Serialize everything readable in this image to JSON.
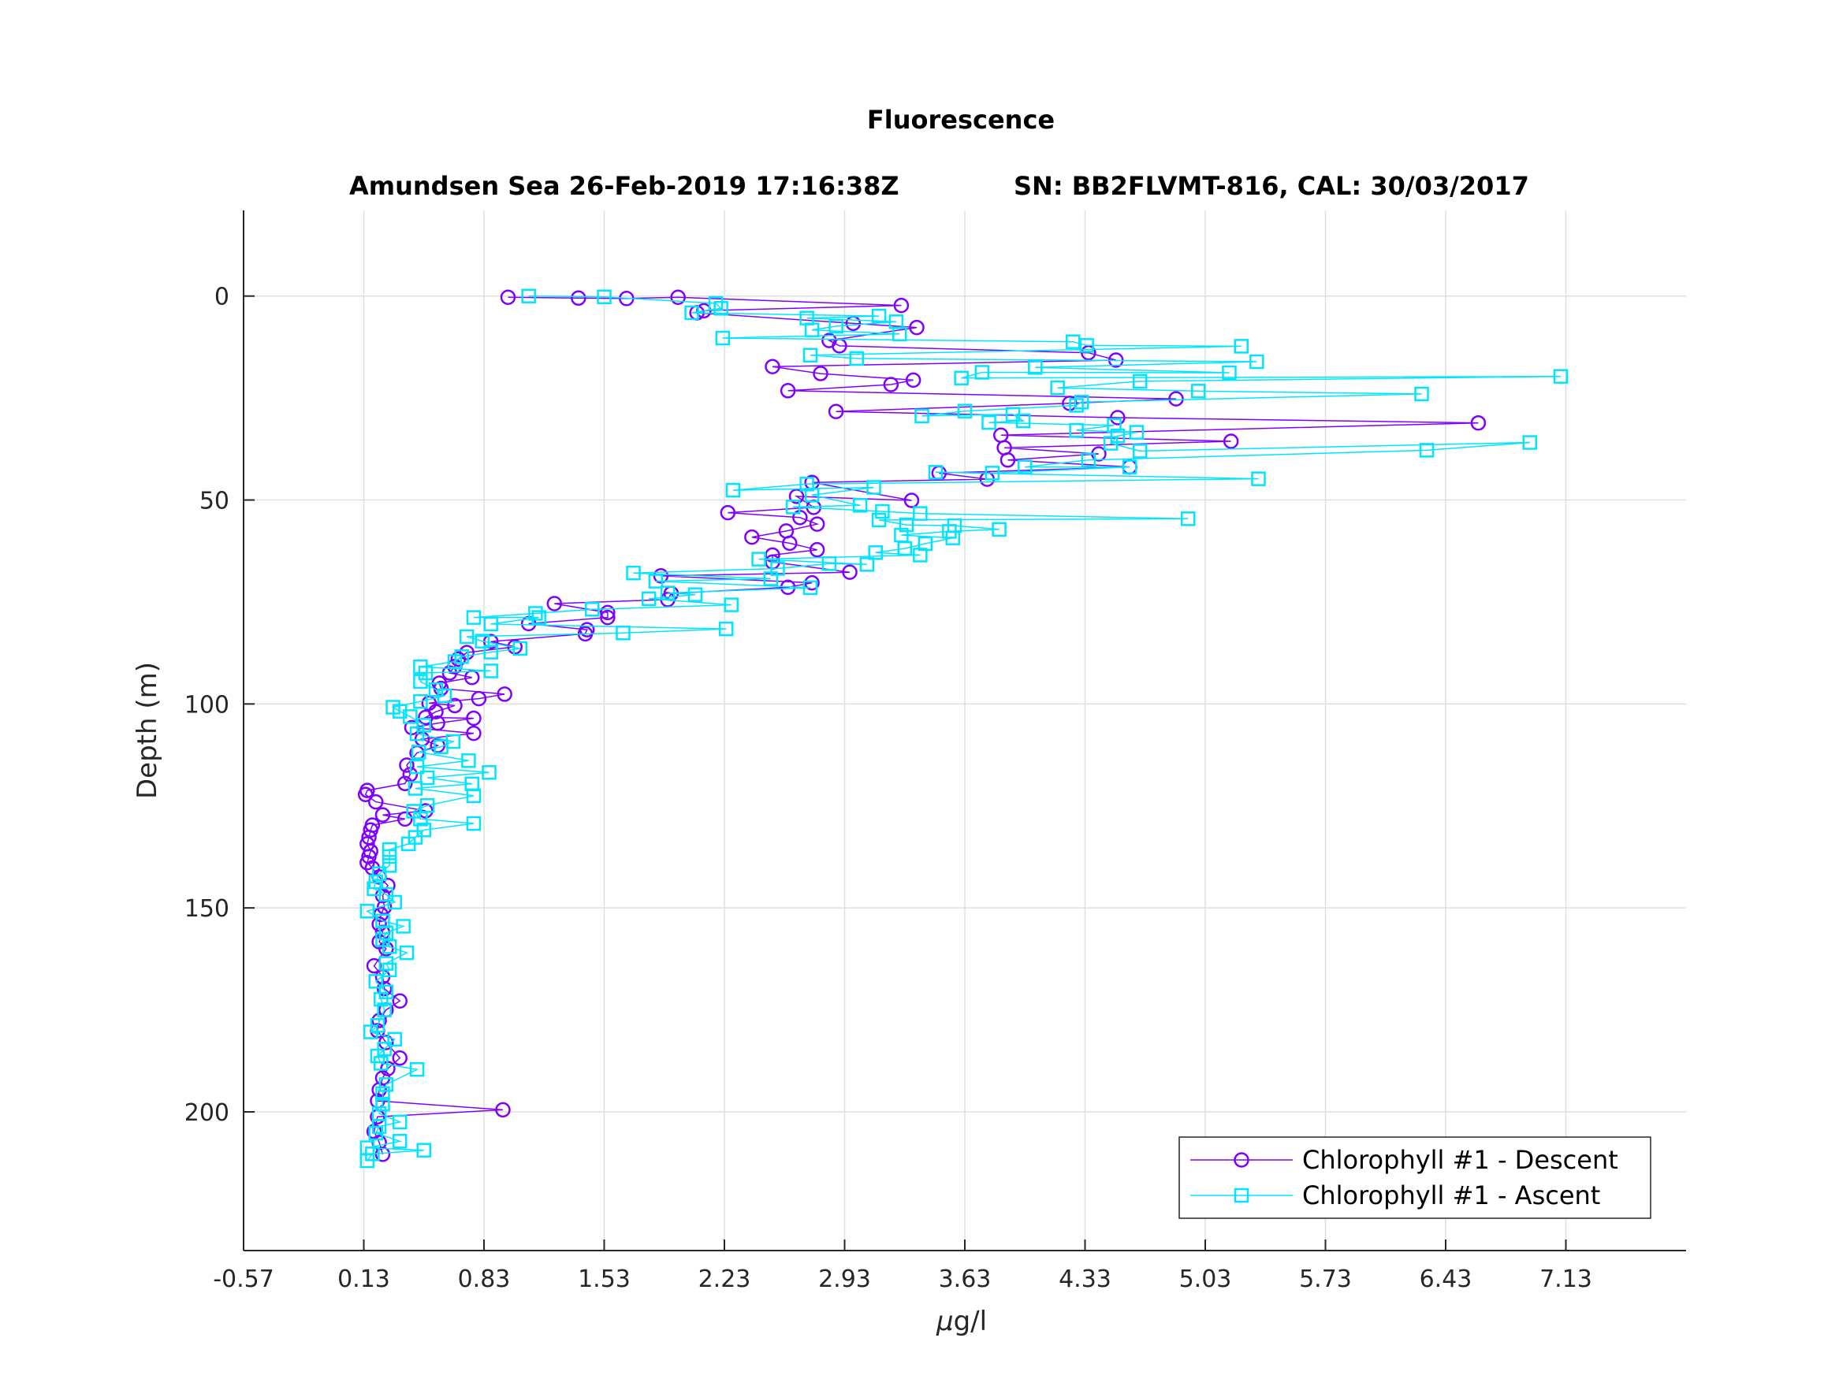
{
  "chart_data": {
    "type": "line",
    "title": "Fluorescence",
    "subtitle_left": "Amundsen Sea 26-Feb-2019 17:16:38Z",
    "subtitle_right": "SN: BB2FLVMT-816, CAL: 30/03/2017",
    "xlabel_prefix": "μ",
    "xlabel_suffix": "g/l",
    "ylabel": "Depth (m)",
    "xlim": [
      -0.57,
      7.83
    ],
    "ylim": [
      -21,
      234
    ],
    "y_reversed": true,
    "grid": true,
    "legend_position": "bottom-right",
    "xticks": [
      "-0.57",
      "0.13",
      "0.83",
      "1.53",
      "2.23",
      "2.93",
      "3.63",
      "4.33",
      "5.03",
      "5.73",
      "6.43",
      "7.13"
    ],
    "yticks": [
      "0",
      "50",
      "100",
      "150",
      "200"
    ],
    "series": [
      {
        "name": "Chlorophyll #1 - Descent",
        "color": "#7f00ff",
        "marker": "circle",
        "points": [
          [
            0.97,
            0.3
          ],
          [
            1.38,
            0.5
          ],
          [
            1.66,
            0.6
          ],
          [
            1.96,
            0.3
          ],
          [
            3.26,
            2.3
          ],
          [
            2.11,
            3.6
          ],
          [
            2.07,
            4.1
          ],
          [
            2.98,
            6.7
          ],
          [
            3.35,
            7.7
          ],
          [
            2.84,
            10.9
          ],
          [
            2.9,
            12.2
          ],
          [
            4.35,
            13.9
          ],
          [
            4.51,
            15.7
          ],
          [
            2.51,
            17.3
          ],
          [
            2.79,
            19.0
          ],
          [
            3.33,
            20.6
          ],
          [
            3.2,
            21.7
          ],
          [
            2.6,
            23.2
          ],
          [
            4.86,
            25.2
          ],
          [
            4.24,
            26.3
          ],
          [
            2.88,
            28.3
          ],
          [
            4.52,
            29.8
          ],
          [
            6.62,
            31.1
          ],
          [
            3.84,
            34.1
          ],
          [
            5.18,
            35.6
          ],
          [
            3.86,
            37.2
          ],
          [
            4.41,
            38.7
          ],
          [
            3.88,
            40.2
          ],
          [
            4.59,
            41.9
          ],
          [
            3.48,
            43.4
          ],
          [
            3.76,
            44.9
          ],
          [
            2.74,
            45.7
          ],
          [
            3.32,
            50.1
          ],
          [
            2.65,
            49.1
          ],
          [
            2.75,
            51.8
          ],
          [
            2.25,
            53.1
          ],
          [
            2.67,
            54.3
          ],
          [
            2.77,
            55.9
          ],
          [
            2.59,
            57.6
          ],
          [
            2.39,
            59.1
          ],
          [
            2.61,
            60.6
          ],
          [
            2.77,
            62.2
          ],
          [
            2.51,
            63.5
          ],
          [
            2.51,
            65.2
          ],
          [
            2.96,
            67.7
          ],
          [
            1.86,
            68.6
          ],
          [
            2.74,
            70.3
          ],
          [
            2.6,
            71.4
          ],
          [
            1.92,
            72.9
          ],
          [
            1.9,
            74.4
          ],
          [
            1.24,
            75.4
          ],
          [
            1.55,
            77.6
          ],
          [
            1.55,
            78.8
          ],
          [
            1.09,
            80.3
          ],
          [
            1.43,
            81.8
          ],
          [
            1.42,
            82.8
          ],
          [
            0.87,
            84.7
          ],
          [
            1.01,
            86.0
          ],
          [
            0.73,
            87.4
          ],
          [
            0.68,
            89.0
          ],
          [
            0.66,
            90.8
          ],
          [
            0.63,
            92.4
          ],
          [
            0.76,
            93.5
          ],
          [
            0.57,
            94.9
          ],
          [
            0.58,
            96.2
          ],
          [
            0.95,
            97.6
          ],
          [
            0.8,
            98.7
          ],
          [
            0.51,
            99.8
          ],
          [
            0.66,
            100.4
          ],
          [
            0.55,
            101.9
          ],
          [
            0.49,
            103.3
          ],
          [
            0.77,
            103.5
          ],
          [
            0.56,
            104.7
          ],
          [
            0.41,
            105.8
          ],
          [
            0.77,
            107.2
          ],
          [
            0.47,
            108.6
          ],
          [
            0.56,
            110.2
          ],
          [
            0.44,
            112.0
          ],
          [
            0.38,
            115.0
          ],
          [
            0.4,
            117.3
          ],
          [
            0.37,
            119.5
          ],
          [
            0.15,
            121.2
          ],
          [
            0.14,
            122.2
          ],
          [
            0.2,
            124.0
          ],
          [
            0.49,
            126.2
          ],
          [
            0.24,
            127.2
          ],
          [
            0.37,
            128.2
          ],
          [
            0.18,
            129.7
          ],
          [
            0.17,
            130.9
          ],
          [
            0.16,
            132.7
          ],
          [
            0.15,
            134.3
          ],
          [
            0.17,
            136.1
          ],
          [
            0.16,
            137.4
          ],
          [
            0.15,
            138.9
          ],
          [
            0.18,
            140.2
          ],
          [
            0.22,
            142.4
          ],
          [
            0.27,
            144.5
          ],
          [
            0.24,
            147.0
          ],
          [
            0.25,
            149.8
          ],
          [
            0.23,
            151.6
          ],
          [
            0.22,
            154.0
          ],
          [
            0.24,
            156.0
          ],
          [
            0.22,
            158.3
          ],
          [
            0.26,
            160.0
          ],
          [
            0.19,
            164.2
          ],
          [
            0.24,
            166.9
          ],
          [
            0.25,
            169.8
          ],
          [
            0.34,
            172.8
          ],
          [
            0.26,
            175.0
          ],
          [
            0.22,
            177.6
          ],
          [
            0.21,
            180.1
          ],
          [
            0.26,
            183.0
          ],
          [
            0.34,
            186.8
          ],
          [
            0.27,
            189.4
          ],
          [
            0.24,
            191.7
          ],
          [
            0.22,
            194.6
          ],
          [
            0.21,
            197.3
          ],
          [
            0.94,
            199.5
          ],
          [
            0.21,
            201.2
          ],
          [
            0.19,
            204.8
          ],
          [
            0.22,
            207.5
          ],
          [
            0.24,
            210.4
          ]
        ]
      },
      {
        "name": "Chlorophyll #1 - Ascent",
        "color": "#00e5ff",
        "marker": "square",
        "points": [
          [
            0.15,
            212.0
          ],
          [
            0.18,
            210.3
          ],
          [
            0.48,
            209.4
          ],
          [
            0.15,
            208.8
          ],
          [
            0.34,
            207.2
          ],
          [
            0.2,
            205.2
          ],
          [
            0.22,
            203.6
          ],
          [
            0.34,
            202.5
          ],
          [
            0.22,
            200.4
          ],
          [
            0.24,
            198.1
          ],
          [
            0.24,
            195.5
          ],
          [
            0.26,
            193.3
          ],
          [
            0.44,
            189.6
          ],
          [
            0.23,
            188.1
          ],
          [
            0.21,
            186.3
          ],
          [
            0.25,
            184.6
          ],
          [
            0.31,
            182.2
          ],
          [
            0.17,
            180.4
          ],
          [
            0.21,
            178.8
          ],
          [
            0.25,
            175.0
          ],
          [
            0.23,
            172.4
          ],
          [
            0.26,
            170.6
          ],
          [
            0.2,
            168.0
          ],
          [
            0.28,
            165.2
          ],
          [
            0.26,
            163.6
          ],
          [
            0.38,
            161.0
          ],
          [
            0.28,
            159.5
          ],
          [
            0.24,
            157.8
          ],
          [
            0.26,
            156.1
          ],
          [
            0.36,
            154.5
          ],
          [
            0.24,
            153.2
          ],
          [
            0.15,
            150.8
          ],
          [
            0.31,
            148.6
          ],
          [
            0.26,
            146.7
          ],
          [
            0.19,
            145.3
          ],
          [
            0.2,
            143.6
          ],
          [
            0.22,
            141.6
          ],
          [
            0.28,
            139.6
          ],
          [
            0.28,
            137.4
          ],
          [
            0.28,
            135.7
          ],
          [
            0.39,
            134.3
          ],
          [
            0.43,
            132.7
          ],
          [
            0.48,
            130.9
          ],
          [
            0.77,
            129.3
          ],
          [
            0.46,
            128.2
          ],
          [
            0.42,
            126.3
          ],
          [
            0.5,
            124.9
          ],
          [
            0.77,
            122.5
          ],
          [
            0.43,
            120.7
          ],
          [
            0.76,
            119.6
          ],
          [
            0.5,
            118.1
          ],
          [
            0.86,
            116.8
          ],
          [
            0.44,
            115.4
          ],
          [
            0.74,
            113.9
          ],
          [
            0.45,
            111.8
          ],
          [
            0.58,
            110.5
          ],
          [
            0.65,
            109.2
          ],
          [
            0.44,
            107.3
          ],
          [
            0.48,
            105.2
          ],
          [
            0.4,
            103.1
          ],
          [
            0.34,
            101.8
          ],
          [
            0.3,
            100.8
          ],
          [
            0.46,
            99.4
          ],
          [
            0.6,
            98.0
          ],
          [
            0.55,
            96.5
          ],
          [
            0.46,
            94.5
          ],
          [
            0.49,
            92.4
          ],
          [
            0.87,
            91.9
          ],
          [
            0.46,
            90.9
          ],
          [
            0.66,
            89.6
          ],
          [
            0.7,
            88.4
          ],
          [
            0.87,
            87.3
          ],
          [
            1.04,
            86.4
          ],
          [
            0.82,
            84.6
          ],
          [
            0.73,
            83.5
          ],
          [
            1.64,
            82.6
          ],
          [
            2.24,
            81.6
          ],
          [
            0.87,
            80.4
          ],
          [
            1.15,
            78.8
          ],
          [
            0.77,
            78.8
          ],
          [
            1.13,
            77.8
          ],
          [
            1.46,
            76.8
          ],
          [
            2.27,
            75.7
          ],
          [
            1.79,
            74.2
          ],
          [
            2.06,
            73.2
          ],
          [
            1.9,
            72.8
          ],
          [
            2.73,
            71.5
          ],
          [
            1.83,
            69.9
          ],
          [
            2.5,
            69.3
          ],
          [
            1.7,
            67.9
          ],
          [
            2.54,
            66.8
          ],
          [
            2.84,
            65.6
          ],
          [
            3.06,
            65.8
          ],
          [
            2.43,
            64.5
          ],
          [
            3.37,
            63.5
          ],
          [
            3.11,
            62.9
          ],
          [
            3.28,
            61.9
          ],
          [
            3.4,
            60.7
          ],
          [
            3.56,
            59.3
          ],
          [
            3.26,
            58.6
          ],
          [
            3.54,
            57.7
          ],
          [
            3.83,
            57.2
          ],
          [
            3.57,
            56.3
          ],
          [
            3.29,
            56.1
          ],
          [
            3.13,
            54.9
          ],
          [
            4.93,
            54.6
          ],
          [
            3.37,
            53.3
          ],
          [
            3.15,
            52.8
          ],
          [
            2.63,
            51.7
          ],
          [
            3.02,
            51.3
          ],
          [
            2.74,
            48.8
          ],
          [
            3.1,
            46.9
          ],
          [
            2.28,
            47.6
          ],
          [
            2.71,
            46.1
          ],
          [
            5.34,
            44.8
          ],
          [
            3.46,
            43.2
          ],
          [
            3.79,
            43.4
          ],
          [
            4.59,
            41.9
          ],
          [
            3.98,
            41.9
          ],
          [
            4.35,
            40.2
          ],
          [
            6.32,
            37.8
          ],
          [
            6.92,
            35.9
          ],
          [
            4.65,
            38.0
          ],
          [
            4.48,
            36.1
          ],
          [
            4.52,
            34.3
          ],
          [
            4.63,
            33.4
          ],
          [
            4.28,
            32.9
          ],
          [
            4.5,
            31.7
          ],
          [
            3.77,
            31.0
          ],
          [
            3.97,
            30.6
          ],
          [
            3.91,
            29.0
          ],
          [
            3.38,
            29.4
          ],
          [
            3.63,
            28.2
          ],
          [
            4.28,
            26.8
          ],
          [
            4.31,
            26.0
          ],
          [
            6.29,
            24.0
          ],
          [
            4.99,
            23.3
          ],
          [
            4.17,
            22.5
          ],
          [
            4.65,
            20.9
          ],
          [
            7.1,
            19.7
          ],
          [
            3.61,
            20.1
          ],
          [
            3.73,
            18.7
          ],
          [
            5.17,
            18.8
          ],
          [
            4.04,
            17.5
          ],
          [
            5.33,
            16.1
          ],
          [
            3.0,
            15.3
          ],
          [
            2.73,
            14.5
          ],
          [
            5.24,
            12.3
          ],
          [
            4.34,
            12.1
          ],
          [
            4.26,
            11.2
          ],
          [
            2.22,
            10.3
          ],
          [
            3.25,
            9.3
          ],
          [
            2.74,
            8.3
          ],
          [
            2.88,
            7.4
          ],
          [
            3.23,
            6.3
          ],
          [
            2.71,
            5.4
          ],
          [
            3.13,
            4.9
          ],
          [
            2.04,
            4.1
          ],
          [
            2.21,
            3.0
          ],
          [
            2.18,
            1.8
          ],
          [
            1.53,
            0.2
          ],
          [
            1.09,
            0.0
          ]
        ]
      }
    ]
  }
}
